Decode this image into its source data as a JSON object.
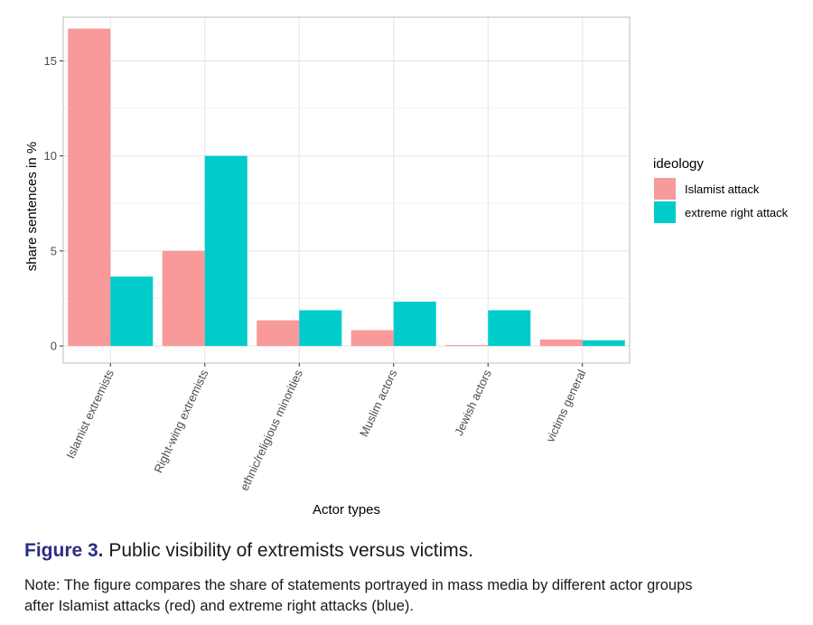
{
  "chart_data": {
    "type": "bar",
    "title": "",
    "xlabel": "Actor types",
    "ylabel": "share sentences in %",
    "ylim": [
      -0.9,
      17.3
    ],
    "yticks": [
      0,
      5,
      10,
      15
    ],
    "grid": true,
    "categories": [
      "Islamist extremists",
      "Right-wing extremists",
      "ethnic/religious minorities",
      "Muslim actors",
      "Jewish actors",
      "victims general"
    ],
    "series": [
      {
        "name": "Islamist attack",
        "color": "#f8999a",
        "values": [
          16.7,
          5.0,
          1.35,
          0.83,
          0.05,
          0.34
        ]
      },
      {
        "name": "extreme right attack",
        "color": "#00cccc",
        "values": [
          3.65,
          10.0,
          1.88,
          2.33,
          1.88,
          0.3
        ]
      }
    ],
    "legend": {
      "title": "ideology",
      "placement": "right"
    }
  },
  "caption": {
    "figure_number": "Figure 3.",
    "title": "Public visibility of extremists versus victims.",
    "note_line1": "Note: The figure compares the share of statements portrayed in mass media by different actor groups",
    "note_line2": "after Islamist attacks (red) and extreme right attacks (blue)."
  }
}
